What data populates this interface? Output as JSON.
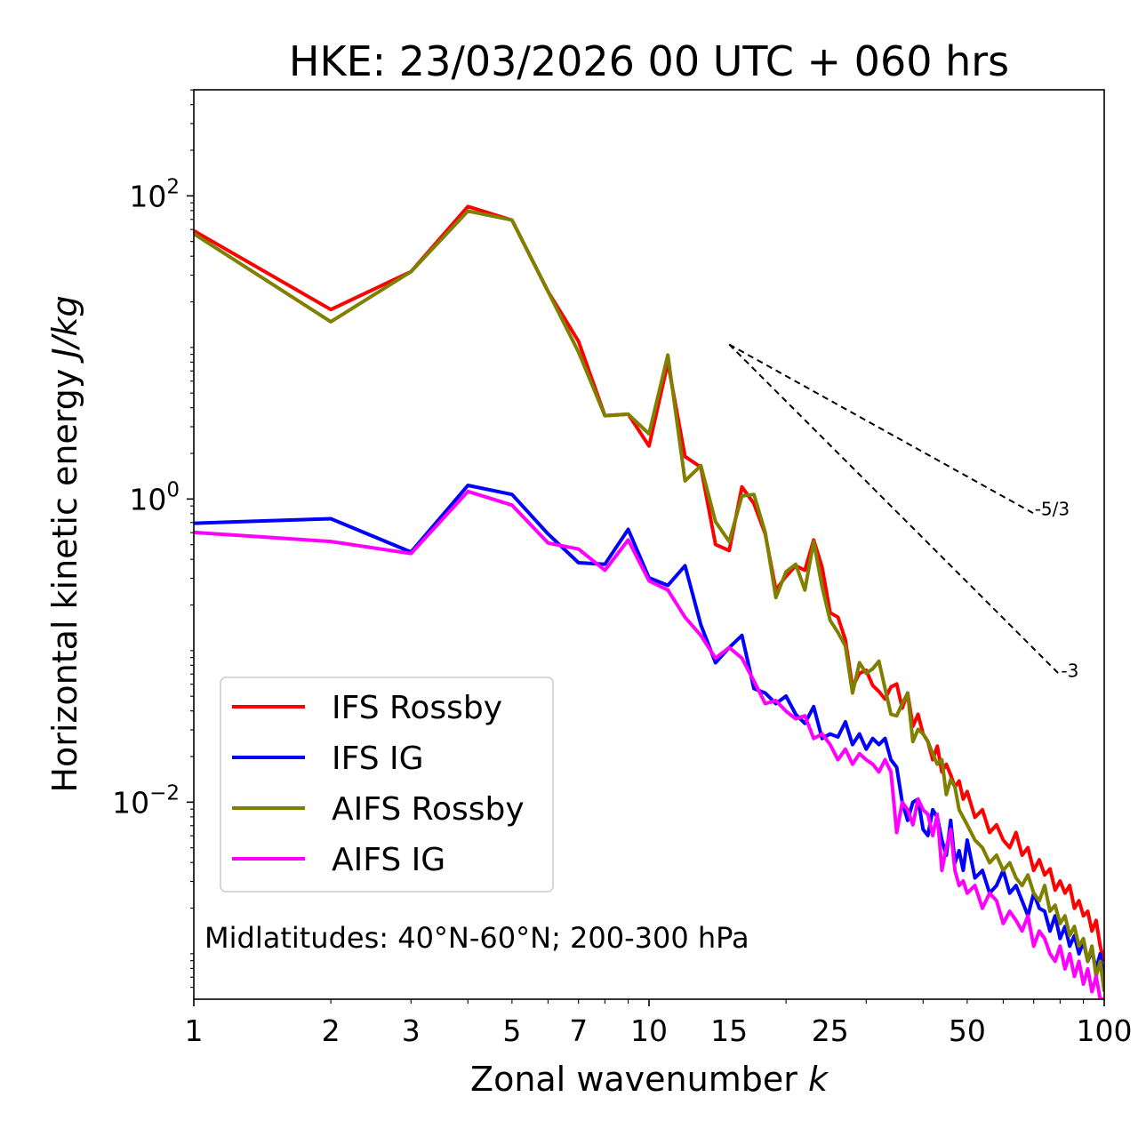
{
  "chart_data": {
    "type": "line",
    "title": "HKE: 23/03/2026 00 UTC + 060 hrs",
    "xlabel": "Zonal wavenumber",
    "xlabel_var": "k",
    "ylabel": "Horizontal kinetic energy",
    "ylabel_units": "J/kg",
    "xscale": "log",
    "yscale": "log",
    "xlim": [
      1,
      100
    ],
    "ylim_log10": [
      -3.3,
      2.7
    ],
    "x_ticks": [
      1,
      2,
      3,
      5,
      7,
      10,
      15,
      25,
      50,
      100
    ],
    "x_tick_labels": [
      "1",
      "2",
      "3",
      "5",
      "7",
      "10",
      "15",
      "25",
      "50",
      "100"
    ],
    "y_ticks_log10": [
      2,
      0,
      -2
    ],
    "y_tick_labels": [
      {
        "base": "10",
        "exp": "2"
      },
      {
        "base": "10",
        "exp": "0"
      },
      {
        "base": "10",
        "exp": "−2"
      }
    ],
    "grid": false,
    "legend_position": "lower-left",
    "annotation": "Midlatitudes: 40°N-60°N; 200-300 hPa",
    "series": [
      {
        "name": "IFS Rossby",
        "color": "#ff0000",
        "x": [
          1,
          2,
          3,
          4,
          5,
          6,
          7,
          8,
          9,
          10,
          11,
          12,
          13,
          14,
          15,
          16,
          17,
          18,
          19,
          20,
          21,
          22,
          23,
          24,
          25,
          26,
          27,
          28,
          29,
          30,
          31,
          32,
          33,
          34,
          35,
          36,
          37,
          38,
          39,
          40,
          41,
          42,
          43,
          44,
          45,
          46,
          47,
          48,
          49,
          50,
          52,
          54,
          56,
          58,
          60,
          62,
          64,
          66,
          68,
          70,
          72,
          74,
          76,
          78,
          80,
          82,
          84,
          86,
          88,
          90,
          92,
          94,
          96,
          98,
          100
        ],
        "y_log10": [
          1.77,
          1.25,
          1.5,
          1.93,
          1.84,
          1.37,
          1.04,
          0.55,
          0.56,
          0.35,
          0.9,
          0.28,
          0.21,
          -0.3,
          -0.34,
          0.08,
          -0.03,
          -0.23,
          -0.6,
          -0.51,
          -0.44,
          -0.47,
          -0.27,
          -0.45,
          -0.75,
          -0.78,
          -0.93,
          -1.24,
          -1.15,
          -1.13,
          -1.23,
          -1.27,
          -1.32,
          -1.24,
          -1.22,
          -1.38,
          -1.28,
          -1.5,
          -1.42,
          -1.55,
          -1.6,
          -1.72,
          -1.63,
          -1.8,
          -1.75,
          -1.82,
          -1.9,
          -1.86,
          -1.98,
          -1.93,
          -2.1,
          -2.05,
          -2.2,
          -2.15,
          -2.25,
          -2.3,
          -2.2,
          -2.35,
          -2.3,
          -2.45,
          -2.38,
          -2.48,
          -2.44,
          -2.58,
          -2.52,
          -2.6,
          -2.55,
          -2.7,
          -2.65,
          -2.75,
          -2.72,
          -2.85,
          -2.78,
          -2.95,
          -3.05
        ]
      },
      {
        "name": "IFS IG",
        "color": "#0000ff",
        "x": [
          1,
          2,
          3,
          4,
          5,
          6,
          7,
          8,
          9,
          10,
          11,
          12,
          13,
          14,
          15,
          16,
          17,
          18,
          19,
          20,
          21,
          22,
          23,
          24,
          25,
          26,
          27,
          28,
          29,
          30,
          31,
          32,
          33,
          34,
          35,
          36,
          37,
          38,
          39,
          40,
          41,
          42,
          43,
          44,
          45,
          46,
          47,
          48,
          49,
          50,
          52,
          54,
          56,
          58,
          60,
          62,
          64,
          66,
          68,
          70,
          72,
          74,
          76,
          78,
          80,
          82,
          84,
          86,
          88,
          90,
          92,
          94,
          96,
          98,
          100
        ],
        "y_log10": [
          -0.16,
          -0.13,
          -0.35,
          0.09,
          0.03,
          -0.23,
          -0.42,
          -0.43,
          -0.2,
          -0.52,
          -0.57,
          -0.44,
          -0.83,
          -1.08,
          -0.98,
          -0.9,
          -1.25,
          -1.28,
          -1.35,
          -1.3,
          -1.42,
          -1.48,
          -1.37,
          -1.58,
          -1.55,
          -1.57,
          -1.47,
          -1.62,
          -1.55,
          -1.65,
          -1.58,
          -1.62,
          -1.58,
          -1.72,
          -1.77,
          -2.0,
          -2.12,
          -2.0,
          -1.98,
          -2.18,
          -2.22,
          -2.05,
          -2.1,
          -2.25,
          -2.35,
          -2.12,
          -2.4,
          -2.32,
          -2.45,
          -2.25,
          -2.5,
          -2.45,
          -2.6,
          -2.55,
          -2.45,
          -2.6,
          -2.55,
          -2.65,
          -2.75,
          -2.6,
          -2.7,
          -2.72,
          -2.85,
          -2.75,
          -2.9,
          -2.82,
          -2.95,
          -2.88,
          -3.0,
          -2.92,
          -3.05,
          -2.98,
          -3.1,
          -3.0,
          -3.2
        ]
      },
      {
        "name": "AIFS Rossby",
        "color": "#808000",
        "x": [
          1,
          2,
          3,
          4,
          5,
          6,
          7,
          8,
          9,
          10,
          11,
          12,
          13,
          14,
          15,
          16,
          17,
          18,
          19,
          20,
          21,
          22,
          23,
          24,
          25,
          26,
          27,
          28,
          29,
          30,
          31,
          32,
          33,
          34,
          35,
          36,
          37,
          38,
          39,
          40,
          41,
          42,
          43,
          44,
          45,
          46,
          47,
          48,
          49,
          50,
          52,
          54,
          56,
          58,
          60,
          62,
          64,
          66,
          68,
          70,
          72,
          74,
          76,
          78,
          80,
          82,
          84,
          86,
          88,
          90,
          92,
          94,
          96,
          98,
          100
        ],
        "y_log10": [
          1.75,
          1.17,
          1.5,
          1.9,
          1.84,
          1.37,
          0.97,
          0.55,
          0.56,
          0.43,
          0.95,
          0.12,
          0.22,
          -0.15,
          -0.28,
          0.02,
          0.03,
          -0.22,
          -0.65,
          -0.48,
          -0.43,
          -0.6,
          -0.28,
          -0.58,
          -0.8,
          -0.88,
          -0.97,
          -1.28,
          -1.08,
          -1.15,
          -1.12,
          -1.07,
          -1.25,
          -1.42,
          -1.43,
          -1.35,
          -1.28,
          -1.6,
          -1.52,
          -1.55,
          -1.6,
          -1.68,
          -1.75,
          -1.72,
          -1.95,
          -1.85,
          -1.9,
          -2.05,
          -2.1,
          -2.15,
          -2.25,
          -2.3,
          -2.4,
          -2.35,
          -2.45,
          -2.4,
          -2.5,
          -2.55,
          -2.48,
          -2.6,
          -2.65,
          -2.55,
          -2.72,
          -2.68,
          -2.8,
          -2.75,
          -2.88,
          -2.82,
          -2.95,
          -2.9,
          -3.05,
          -2.95,
          -3.15,
          -3.05,
          -3.25
        ]
      },
      {
        "name": "AIFS IG",
        "color": "#ff00ff",
        "x": [
          1,
          2,
          3,
          4,
          5,
          6,
          7,
          8,
          9,
          10,
          11,
          12,
          13,
          14,
          15,
          16,
          17,
          18,
          19,
          20,
          21,
          22,
          23,
          24,
          25,
          26,
          27,
          28,
          29,
          30,
          31,
          32,
          33,
          34,
          35,
          36,
          37,
          38,
          39,
          40,
          41,
          42,
          43,
          44,
          45,
          46,
          47,
          48,
          49,
          50,
          52,
          54,
          56,
          58,
          60,
          62,
          64,
          66,
          68,
          70,
          72,
          74,
          76,
          78,
          80,
          82,
          84,
          86,
          88,
          90,
          92,
          94,
          96,
          98,
          100
        ],
        "y_log10": [
          -0.22,
          -0.28,
          -0.36,
          0.05,
          -0.04,
          -0.29,
          -0.33,
          -0.47,
          -0.27,
          -0.54,
          -0.6,
          -0.78,
          -0.9,
          -1.05,
          -0.98,
          -1.05,
          -1.2,
          -1.35,
          -1.33,
          -1.4,
          -1.45,
          -1.43,
          -1.58,
          -1.55,
          -1.62,
          -1.72,
          -1.65,
          -1.75,
          -1.68,
          -1.72,
          -1.75,
          -1.8,
          -1.72,
          -1.8,
          -2.2,
          -2.0,
          -2.05,
          -2.15,
          -1.98,
          -2.05,
          -2.08,
          -2.22,
          -2.08,
          -2.45,
          -2.3,
          -2.18,
          -2.45,
          -2.55,
          -2.52,
          -2.6,
          -2.55,
          -2.7,
          -2.6,
          -2.65,
          -2.8,
          -2.72,
          -2.78,
          -2.85,
          -2.75,
          -2.95,
          -2.85,
          -2.9,
          -3.0,
          -3.05,
          -2.95,
          -3.1,
          -3.0,
          -3.15,
          -3.05,
          -3.2,
          -3.1,
          -3.25,
          -3.15,
          -3.3,
          -3.3
        ]
      }
    ],
    "reference_slopes": [
      {
        "label": "-5/3",
        "slope": -1.6667,
        "x_start": 15,
        "x_end": 70,
        "y_log10_start": 1.02
      },
      {
        "label": "-3",
        "slope": -3.0,
        "x_start": 15,
        "x_end": 80,
        "y_log10_start": 1.02
      }
    ]
  }
}
